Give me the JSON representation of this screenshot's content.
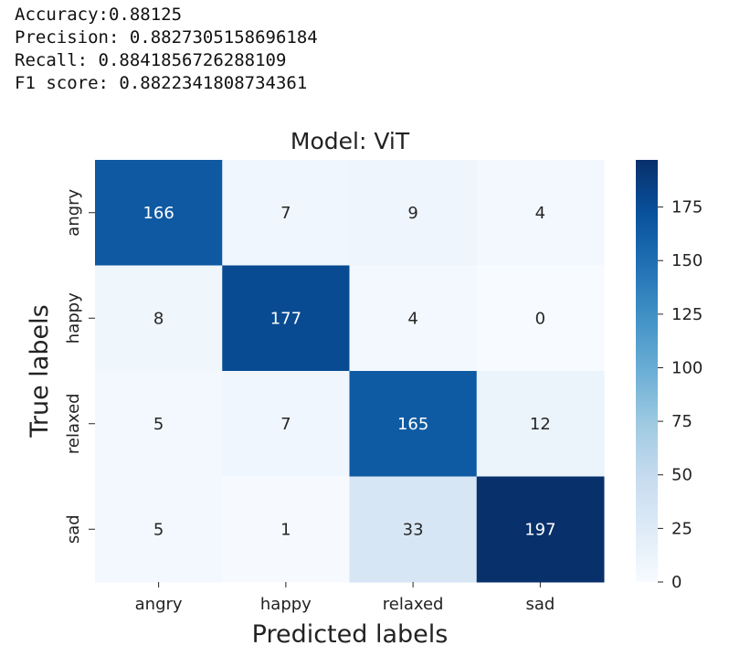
{
  "metrics": [
    "Accuracy:0.88125",
    "Precision: 0.8827305158696184",
    "Recall: 0.8841856726288109",
    "F1 score: 0.8822341808734361"
  ],
  "chart_data": {
    "type": "heatmap",
    "title": "Model: ViT",
    "xlabel": "Predicted labels",
    "ylabel": "True labels",
    "x_categories": [
      "angry",
      "happy",
      "relaxed",
      "sad"
    ],
    "y_categories": [
      "angry",
      "happy",
      "relaxed",
      "sad"
    ],
    "values": [
      [
        166,
        7,
        9,
        4
      ],
      [
        8,
        177,
        4,
        0
      ],
      [
        5,
        7,
        165,
        12
      ],
      [
        5,
        1,
        33,
        197
      ]
    ],
    "colormap": "Blues",
    "colorbar": {
      "min": 0,
      "max": 197,
      "ticks": [
        0,
        25,
        50,
        75,
        100,
        125,
        150,
        175
      ]
    }
  }
}
